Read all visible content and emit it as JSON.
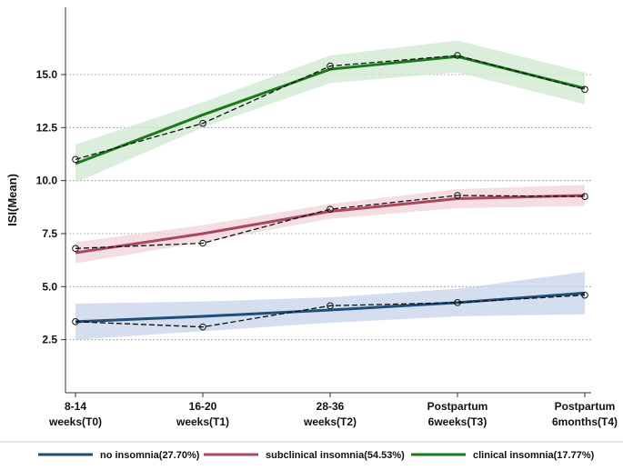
{
  "chart_data": {
    "type": "line",
    "title": "",
    "xlabel": "",
    "ylabel": "ISI(Mean)",
    "ylim": [
      0,
      18
    ],
    "yticks": [
      "2.5",
      "5.0",
      "7.5",
      "10.0",
      "12.5",
      "15.0"
    ],
    "yticks_values": [
      2.5,
      5.0,
      7.5,
      10.0,
      12.5,
      15.0
    ],
    "x_labels": [
      [
        "8-14",
        "weeks(T0)"
      ],
      [
        "16-20",
        "weeks(T1)"
      ],
      [
        "28-36",
        "weeks(T2)"
      ],
      [
        "Postpartum",
        "6weeks(T3)"
      ],
      [
        "Postpartum",
        "6months(T4)"
      ]
    ],
    "grid": "horizontal dashed",
    "legend_position": "bottom",
    "series": [
      {
        "name": "no insomnia(27.70%)",
        "color": "#1f4e79",
        "band_color": "#c5d3e8",
        "fitted": [
          3.35,
          3.6,
          3.9,
          4.25,
          4.7
        ],
        "band_lower": [
          2.5,
          2.9,
          3.3,
          3.6,
          3.7
        ],
        "band_upper": [
          4.2,
          4.3,
          4.5,
          4.9,
          5.7
        ],
        "observed": [
          3.35,
          3.1,
          4.1,
          4.25,
          4.6
        ]
      },
      {
        "name": "subclinical insomnia(54.53%)",
        "color": "#a8475e",
        "band_color": "#f0d3da",
        "fitted": [
          6.6,
          7.5,
          8.55,
          9.15,
          9.3
        ],
        "band_lower": [
          6.1,
          7.1,
          8.2,
          8.7,
          8.8
        ],
        "band_upper": [
          7.1,
          7.9,
          8.9,
          9.6,
          9.8
        ],
        "observed": [
          6.8,
          7.05,
          8.65,
          9.3,
          9.25
        ]
      },
      {
        "name": "clinical insomnia(17.77%)",
        "color": "#1a7a1a",
        "band_color": "#cfe8cf",
        "fitted": [
          10.8,
          13.1,
          15.25,
          15.85,
          14.35
        ],
        "band_lower": [
          9.9,
          12.5,
          14.6,
          15.1,
          13.6
        ],
        "band_upper": [
          11.7,
          13.7,
          15.9,
          16.6,
          15.1
        ],
        "observed": [
          11.0,
          12.7,
          15.4,
          15.9,
          14.3
        ]
      }
    ]
  }
}
